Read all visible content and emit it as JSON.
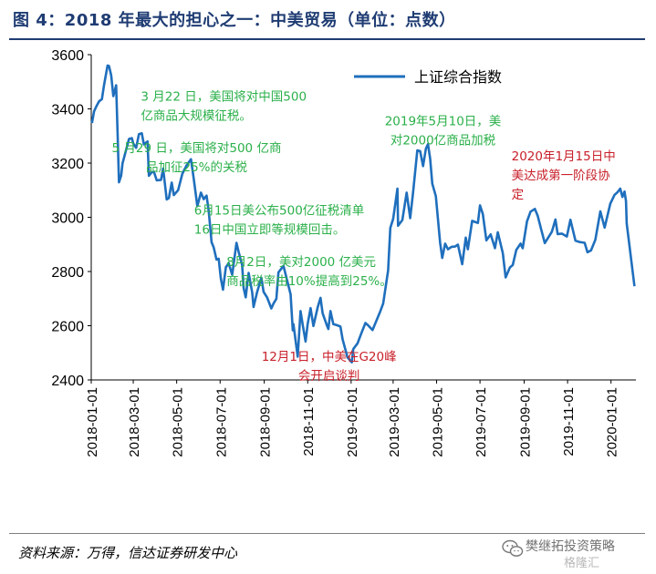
{
  "title": "图 4：2018 年最大的担心之一：中美贸易（单位：点数）",
  "source": "资料来源：万得，信达证券研发中心",
  "watermark": {
    "line1": "樊继拓投资策略",
    "line2": "格隆汇"
  },
  "colors": {
    "line": "#1f6fbd",
    "green_annot": "#2bb04a",
    "red_annot": "#c8202a",
    "title": "#1f3c73"
  },
  "chart_data": {
    "type": "line",
    "title": "",
    "xlabel": "",
    "ylabel": "",
    "ylim": [
      2400,
      3600
    ],
    "yticks": [
      "2400",
      "2600",
      "2800",
      "3000",
      "3200",
      "3400",
      "3600"
    ],
    "xticks": [
      "2018-01-01",
      "2018-03-01",
      "2018-05-01",
      "2018-07-01",
      "2018-09-01",
      "2018-11-01",
      "2019-01-01",
      "2019-03-01",
      "2019-05-01",
      "2019-07-01",
      "2019-09-01",
      "2019-11-01",
      "2020-01-01"
    ],
    "grid": false,
    "legend": "top-right",
    "series": [
      {
        "name": "上证综合指数",
        "points": [
          [
            "2018-01-02",
            3348
          ],
          [
            "2018-01-05",
            3391
          ],
          [
            "2018-01-09",
            3413
          ],
          [
            "2018-01-12",
            3428
          ],
          [
            "2018-01-16",
            3436
          ],
          [
            "2018-01-19",
            3487
          ],
          [
            "2018-01-24",
            3560
          ],
          [
            "2018-01-26",
            3558
          ],
          [
            "2018-01-29",
            3523
          ],
          [
            "2018-02-01",
            3447
          ],
          [
            "2018-02-05",
            3487
          ],
          [
            "2018-02-07",
            3309
          ],
          [
            "2018-02-09",
            3129
          ],
          [
            "2018-02-12",
            3154
          ],
          [
            "2018-02-14",
            3199
          ],
          [
            "2018-02-23",
            3289
          ],
          [
            "2018-02-27",
            3292
          ],
          [
            "2018-03-01",
            3273
          ],
          [
            "2018-03-05",
            3256
          ],
          [
            "2018-03-09",
            3307
          ],
          [
            "2018-03-13",
            3310
          ],
          [
            "2018-03-16",
            3269
          ],
          [
            "2018-03-21",
            3280
          ],
          [
            "2018-03-23",
            3153
          ],
          [
            "2018-03-27",
            3166
          ],
          [
            "2018-03-30",
            3168
          ],
          [
            "2018-04-03",
            3136
          ],
          [
            "2018-04-09",
            3138
          ],
          [
            "2018-04-12",
            3180
          ],
          [
            "2018-04-17",
            3066
          ],
          [
            "2018-04-20",
            3071
          ],
          [
            "2018-04-24",
            3128
          ],
          [
            "2018-04-27",
            3082
          ],
          [
            "2018-05-03",
            3100
          ],
          [
            "2018-05-09",
            3161
          ],
          [
            "2018-05-15",
            3192
          ],
          [
            "2018-05-21",
            3214
          ],
          [
            "2018-05-25",
            3141
          ],
          [
            "2018-05-30",
            3041
          ],
          [
            "2018-06-04",
            3091
          ],
          [
            "2018-06-08",
            3067
          ],
          [
            "2018-06-12",
            3080
          ],
          [
            "2018-06-15",
            3022
          ],
          [
            "2018-06-19",
            2908
          ],
          [
            "2018-06-22",
            2889
          ],
          [
            "2018-06-26",
            2844
          ],
          [
            "2018-06-29",
            2847
          ],
          [
            "2018-07-02",
            2775
          ],
          [
            "2018-07-05",
            2733
          ],
          [
            "2018-07-09",
            2815
          ],
          [
            "2018-07-13",
            2831
          ],
          [
            "2018-07-18",
            2788
          ],
          [
            "2018-07-24",
            2906
          ],
          [
            "2018-07-27",
            2873
          ],
          [
            "2018-08-01",
            2824
          ],
          [
            "2018-08-03",
            2740
          ],
          [
            "2018-08-06",
            2705
          ],
          [
            "2018-08-10",
            2795
          ],
          [
            "2018-08-15",
            2723
          ],
          [
            "2018-08-17",
            2669
          ],
          [
            "2018-08-22",
            2724
          ],
          [
            "2018-08-28",
            2777
          ],
          [
            "2018-08-31",
            2725
          ],
          [
            "2018-09-05",
            2704
          ],
          [
            "2018-09-11",
            2664
          ],
          [
            "2018-09-14",
            2682
          ],
          [
            "2018-09-18",
            2699
          ],
          [
            "2018-09-21",
            2797
          ],
          [
            "2018-09-28",
            2821
          ],
          [
            "2018-10-08",
            2716
          ],
          [
            "2018-10-11",
            2583
          ],
          [
            "2018-10-12",
            2606
          ],
          [
            "2018-10-18",
            2486
          ],
          [
            "2018-10-22",
            2654
          ],
          [
            "2018-10-25",
            2603
          ],
          [
            "2018-10-29",
            2542
          ],
          [
            "2018-11-01",
            2606
          ],
          [
            "2018-11-05",
            2665
          ],
          [
            "2018-11-09",
            2599
          ],
          [
            "2018-11-15",
            2668
          ],
          [
            "2018-11-19",
            2703
          ],
          [
            "2018-11-22",
            2646
          ],
          [
            "2018-11-28",
            2601
          ],
          [
            "2018-11-30",
            2588
          ],
          [
            "2018-12-03",
            2654
          ],
          [
            "2018-12-07",
            2606
          ],
          [
            "2018-12-12",
            2602
          ],
          [
            "2018-12-17",
            2597
          ],
          [
            "2018-12-20",
            2550
          ],
          [
            "2018-12-27",
            2483
          ],
          [
            "2019-01-02",
            2465
          ],
          [
            "2019-01-04",
            2514
          ],
          [
            "2019-01-10",
            2535
          ],
          [
            "2019-01-15",
            2570
          ],
          [
            "2019-01-21",
            2610
          ],
          [
            "2019-01-25",
            2601
          ],
          [
            "2019-01-31",
            2584
          ],
          [
            "2019-02-11",
            2653
          ],
          [
            "2019-02-15",
            2682
          ],
          [
            "2019-02-22",
            2804
          ],
          [
            "2019-02-25",
            2961
          ],
          [
            "2019-03-01",
            2994
          ],
          [
            "2019-03-07",
            3106
          ],
          [
            "2019-03-08",
            2969
          ],
          [
            "2019-03-14",
            2990
          ],
          [
            "2019-03-20",
            3091
          ],
          [
            "2019-03-25",
            2997
          ],
          [
            "2019-03-29",
            3090
          ],
          [
            "2019-04-04",
            3247
          ],
          [
            "2019-04-08",
            3244
          ],
          [
            "2019-04-12",
            3189
          ],
          [
            "2019-04-16",
            3253
          ],
          [
            "2019-04-19",
            3270
          ],
          [
            "2019-04-22",
            3215
          ],
          [
            "2019-04-25",
            3124
          ],
          [
            "2019-04-30",
            3078
          ],
          [
            "2019-05-06",
            2906
          ],
          [
            "2019-05-09",
            2850
          ],
          [
            "2019-05-13",
            2903
          ],
          [
            "2019-05-17",
            2882
          ],
          [
            "2019-05-22",
            2891
          ],
          [
            "2019-05-27",
            2892
          ],
          [
            "2019-05-31",
            2899
          ],
          [
            "2019-06-06",
            2827
          ],
          [
            "2019-06-11",
            2925
          ],
          [
            "2019-06-14",
            2882
          ],
          [
            "2019-06-20",
            2987
          ],
          [
            "2019-06-25",
            2982
          ],
          [
            "2019-06-28",
            2979
          ],
          [
            "2019-07-01",
            3044
          ],
          [
            "2019-07-05",
            3012
          ],
          [
            "2019-07-10",
            2915
          ],
          [
            "2019-07-16",
            2937
          ],
          [
            "2019-07-22",
            2886
          ],
          [
            "2019-07-26",
            2945
          ],
          [
            "2019-08-02",
            2868
          ],
          [
            "2019-08-06",
            2778
          ],
          [
            "2019-08-12",
            2815
          ],
          [
            "2019-08-16",
            2824
          ],
          [
            "2019-08-21",
            2880
          ],
          [
            "2019-08-27",
            2903
          ],
          [
            "2019-08-30",
            2886
          ],
          [
            "2019-09-05",
            2985
          ],
          [
            "2019-09-10",
            3021
          ],
          [
            "2019-09-16",
            3031
          ],
          [
            "2019-09-20",
            3006
          ],
          [
            "2019-09-25",
            2955
          ],
          [
            "2019-09-30",
            2905
          ],
          [
            "2019-10-10",
            2947
          ],
          [
            "2019-10-15",
            2992
          ],
          [
            "2019-10-18",
            2938
          ],
          [
            "2019-10-24",
            2940
          ],
          [
            "2019-10-31",
            2929
          ],
          [
            "2019-11-05",
            2991
          ],
          [
            "2019-11-12",
            2914
          ],
          [
            "2019-11-18",
            2909
          ],
          [
            "2019-11-25",
            2906
          ],
          [
            "2019-11-29",
            2871
          ],
          [
            "2019-12-04",
            2878
          ],
          [
            "2019-12-10",
            2917
          ],
          [
            "2019-12-17",
            3022
          ],
          [
            "2019-12-23",
            2962
          ],
          [
            "2019-12-31",
            3050
          ],
          [
            "2020-01-06",
            3083
          ],
          [
            "2020-01-10",
            3092
          ],
          [
            "2020-01-14",
            3106
          ],
          [
            "2020-01-17",
            3075
          ],
          [
            "2020-01-20",
            3095
          ],
          [
            "2020-01-22",
            3060
          ],
          [
            "2020-01-23",
            2977
          ],
          [
            "2020-02-03",
            2746
          ]
        ]
      }
    ],
    "annotations": [
      {
        "lines": [
          "3 月22 日，美国将对中国500",
          "亿商品大规模征税。"
        ],
        "color": "green",
        "date": "2018-03-22",
        "y": 3430,
        "anchor": "start"
      },
      {
        "lines": [
          "5 月29 日，美国将对500 亿商",
          "品加征25%的关税"
        ],
        "color": "green",
        "date": "2018-05-29",
        "y": 3240,
        "anchor": "center"
      },
      {
        "lines": [
          "6月15日美公布500亿征税清单",
          "16日中国立即等规模回击。"
        ],
        "color": "green",
        "date": "2018-06-15",
        "y": 3010,
        "anchor": "start"
      },
      {
        "lines": [
          "8月2日，美对2000 亿美元",
          "商品税率由10%提高到25%。"
        ],
        "color": "green",
        "date": "2018-08-02",
        "y": 2820,
        "anchor": "start"
      },
      {
        "lines": [
          "12月1日，中美在G20峰",
          "会开启谈判"
        ],
        "color": "red",
        "date": "2018-12-01",
        "y": 2470,
        "anchor": "center"
      },
      {
        "lines": [
          "2019年5月10日，美",
          "对2000亿商品加税"
        ],
        "color": "green",
        "date": "2019-05-10",
        "y": 3340,
        "anchor": "center"
      },
      {
        "lines": [
          "2020年1月15日中",
          "美达成第一阶段协",
          "定"
        ],
        "color": "red",
        "date": "2020-01-15",
        "y": 3210,
        "anchor": "end"
      }
    ]
  }
}
